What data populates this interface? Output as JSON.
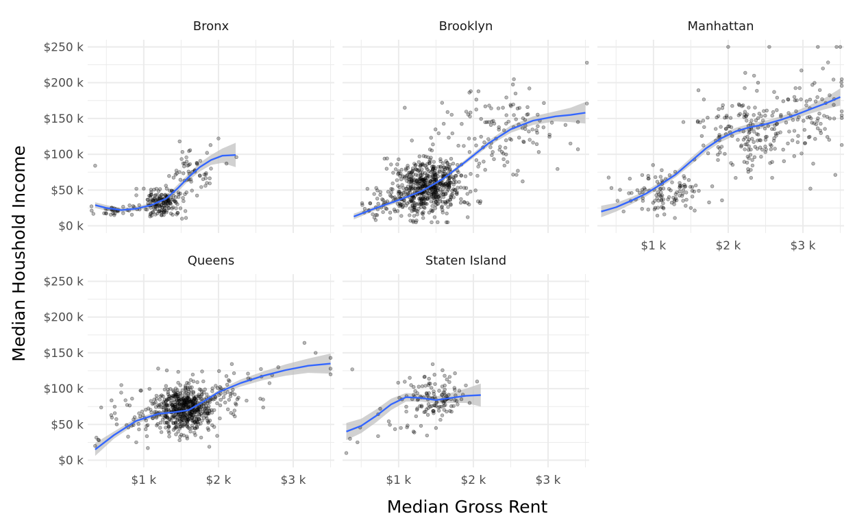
{
  "chart_data": {
    "type": "scatter",
    "xlabel": "Median Gross Rent",
    "ylabel": "Median Houshold Income",
    "xlim": [
      250,
      3550
    ],
    "ylim": [
      -10000,
      260000
    ],
    "x_ticks": [
      1000,
      2000,
      3000
    ],
    "x_tick_labels": [
      "$1 k",
      "$2 k",
      "$3 k"
    ],
    "y_ticks": [
      0,
      50000,
      100000,
      150000,
      200000,
      250000
    ],
    "y_tick_labels": [
      "$0 k",
      "$50 k",
      "$100 k",
      "$150 k",
      "$200 k",
      "$250 k"
    ],
    "grid": true,
    "colors": {
      "points": "#000000",
      "smooth": "#3366ff",
      "band": "#bdbdbd",
      "grid": "#ebebeb"
    },
    "panels": [
      {
        "name": "Bronx",
        "clusters": [
          {
            "cx": 1250,
            "cy": 32000,
            "sx": 130,
            "sy": 11000,
            "n": 160
          },
          {
            "cx": 1650,
            "cy": 75000,
            "sx": 160,
            "sy": 18000,
            "n": 55
          },
          {
            "cx": 650,
            "cy": 21000,
            "sx": 160,
            "sy": 4000,
            "n": 35
          }
        ],
        "points": [
          [
            350,
            84000
          ],
          [
            1000,
            52000
          ],
          [
            2000,
            122000
          ],
          [
            1480,
            118000
          ],
          [
            1900,
            80000
          ],
          [
            2240,
            96000
          ],
          [
            1200,
            20000
          ]
        ],
        "smooth": [
          [
            350,
            29000
          ],
          [
            500,
            25000
          ],
          [
            700,
            22000
          ],
          [
            900,
            24000
          ],
          [
            1100,
            29000
          ],
          [
            1300,
            38000
          ],
          [
            1450,
            52000
          ],
          [
            1600,
            68000
          ],
          [
            1750,
            82000
          ],
          [
            1900,
            92000
          ],
          [
            2050,
            98000
          ],
          [
            2230,
            99000
          ]
        ],
        "band": [
          4000,
          4000,
          3000,
          3000,
          3000,
          4000,
          5000,
          5000,
          6000,
          7000,
          10000,
          17000
        ]
      },
      {
        "name": "Brooklyn",
        "clusters": [
          {
            "cx": 1400,
            "cy": 55000,
            "sx": 230,
            "sy": 19000,
            "n": 560
          },
          {
            "cx": 2350,
            "cy": 130000,
            "sx": 380,
            "sy": 28000,
            "n": 120
          },
          {
            "cx": 900,
            "cy": 30000,
            "sx": 250,
            "sy": 12000,
            "n": 60
          }
        ],
        "points": [
          [
            3520,
            228000
          ],
          [
            2750,
            192000
          ],
          [
            3400,
            145000
          ],
          [
            3300,
            115000
          ],
          [
            3400,
            107000
          ],
          [
            600,
            22000
          ],
          [
            1000,
            93000
          ],
          [
            1800,
            112000
          ]
        ],
        "smooth": [
          [
            400,
            13000
          ],
          [
            700,
            25000
          ],
          [
            1000,
            36000
          ],
          [
            1300,
            48000
          ],
          [
            1600,
            66000
          ],
          [
            1900,
            90000
          ],
          [
            2200,
            115000
          ],
          [
            2500,
            135000
          ],
          [
            2800,
            147000
          ],
          [
            3100,
            153000
          ],
          [
            3300,
            155000
          ],
          [
            3500,
            158000
          ]
        ],
        "band": [
          4000,
          3000,
          3000,
          2000,
          2000,
          3000,
          4000,
          5000,
          6000,
          7000,
          10000,
          15000
        ]
      },
      {
        "name": "Manhattan",
        "clusters": [
          {
            "cx": 1150,
            "cy": 45000,
            "sx": 250,
            "sy": 16000,
            "n": 110
          },
          {
            "cx": 2250,
            "cy": 130000,
            "sx": 330,
            "sy": 30000,
            "n": 170
          },
          {
            "cx": 3100,
            "cy": 160000,
            "sx": 250,
            "sy": 32000,
            "n": 70
          }
        ],
        "points": [
          [
            2000,
            250000
          ],
          [
            2550,
            250000
          ],
          [
            3200,
            250000
          ],
          [
            3450,
            250000
          ],
          [
            3500,
            250000
          ],
          [
            2400,
            200000
          ],
          [
            3100,
            52000
          ],
          [
            1400,
            145000
          ],
          [
            3520,
            160000
          ],
          [
            1500,
            25000
          ]
        ],
        "smooth": [
          [
            300,
            20000
          ],
          [
            500,
            26000
          ],
          [
            700,
            35000
          ],
          [
            900,
            45000
          ],
          [
            1100,
            58000
          ],
          [
            1300,
            72000
          ],
          [
            1500,
            90000
          ],
          [
            1700,
            108000
          ],
          [
            1900,
            122000
          ],
          [
            2100,
            132000
          ],
          [
            2300,
            138000
          ],
          [
            2500,
            142000
          ],
          [
            2700,
            148000
          ],
          [
            2900,
            155000
          ],
          [
            3100,
            163000
          ],
          [
            3300,
            171000
          ],
          [
            3500,
            180000
          ]
        ],
        "band": [
          8000,
          6000,
          5000,
          4000,
          4000,
          4000,
          5000,
          5000,
          5000,
          5000,
          5000,
          5000,
          5000,
          5000,
          6000,
          8000,
          12000
        ]
      },
      {
        "name": "Queens",
        "clusters": [
          {
            "cx": 1550,
            "cy": 72000,
            "sx": 190,
            "sy": 16000,
            "n": 520
          },
          {
            "cx": 2100,
            "cy": 95000,
            "sx": 300,
            "sy": 18000,
            "n": 60
          },
          {
            "cx": 900,
            "cy": 60000,
            "sx": 220,
            "sy": 20000,
            "n": 50
          }
        ],
        "points": [
          [
            350,
            20000
          ],
          [
            400,
            28000
          ],
          [
            3500,
            143000
          ],
          [
            3500,
            128000
          ],
          [
            3500,
            120000
          ],
          [
            3150,
            164000
          ],
          [
            3300,
            150000
          ],
          [
            2800,
            130000
          ],
          [
            700,
            105000
          ],
          [
            900,
            25000
          ]
        ],
        "smooth": [
          [
            350,
            15000
          ],
          [
            600,
            35000
          ],
          [
            900,
            55000
          ],
          [
            1200,
            65000
          ],
          [
            1400,
            67000
          ],
          [
            1600,
            70000
          ],
          [
            1800,
            82000
          ],
          [
            2000,
            95000
          ],
          [
            2300,
            108000
          ],
          [
            2600,
            118000
          ],
          [
            2900,
            126000
          ],
          [
            3200,
            132000
          ],
          [
            3500,
            135000
          ]
        ],
        "band": [
          9000,
          5000,
          4000,
          3000,
          2000,
          2000,
          3000,
          3000,
          5000,
          6000,
          8000,
          10000,
          14000
        ]
      },
      {
        "name": "Staten Island",
        "clusters": [
          {
            "cx": 1450,
            "cy": 88000,
            "sx": 200,
            "sy": 17000,
            "n": 120
          },
          {
            "cx": 800,
            "cy": 45000,
            "sx": 230,
            "sy": 14000,
            "n": 12
          }
        ],
        "points": [
          [
            300,
            10000
          ],
          [
            380,
            127000
          ],
          [
            350,
            30000
          ],
          [
            450,
            25000
          ],
          [
            2050,
            110000
          ],
          [
            1950,
            80000
          ],
          [
            1200,
            40000
          ],
          [
            1300,
            48000
          ],
          [
            1500,
            45000
          ]
        ],
        "smooth": [
          [
            300,
            40000
          ],
          [
            500,
            48000
          ],
          [
            700,
            62000
          ],
          [
            900,
            78000
          ],
          [
            1100,
            88000
          ],
          [
            1300,
            87000
          ],
          [
            1500,
            84000
          ],
          [
            1700,
            87000
          ],
          [
            1900,
            90000
          ],
          [
            2100,
            91000
          ]
        ],
        "band": [
          12000,
          10000,
          9000,
          8000,
          6000,
          5000,
          5000,
          7000,
          10000,
          16000
        ]
      }
    ]
  }
}
